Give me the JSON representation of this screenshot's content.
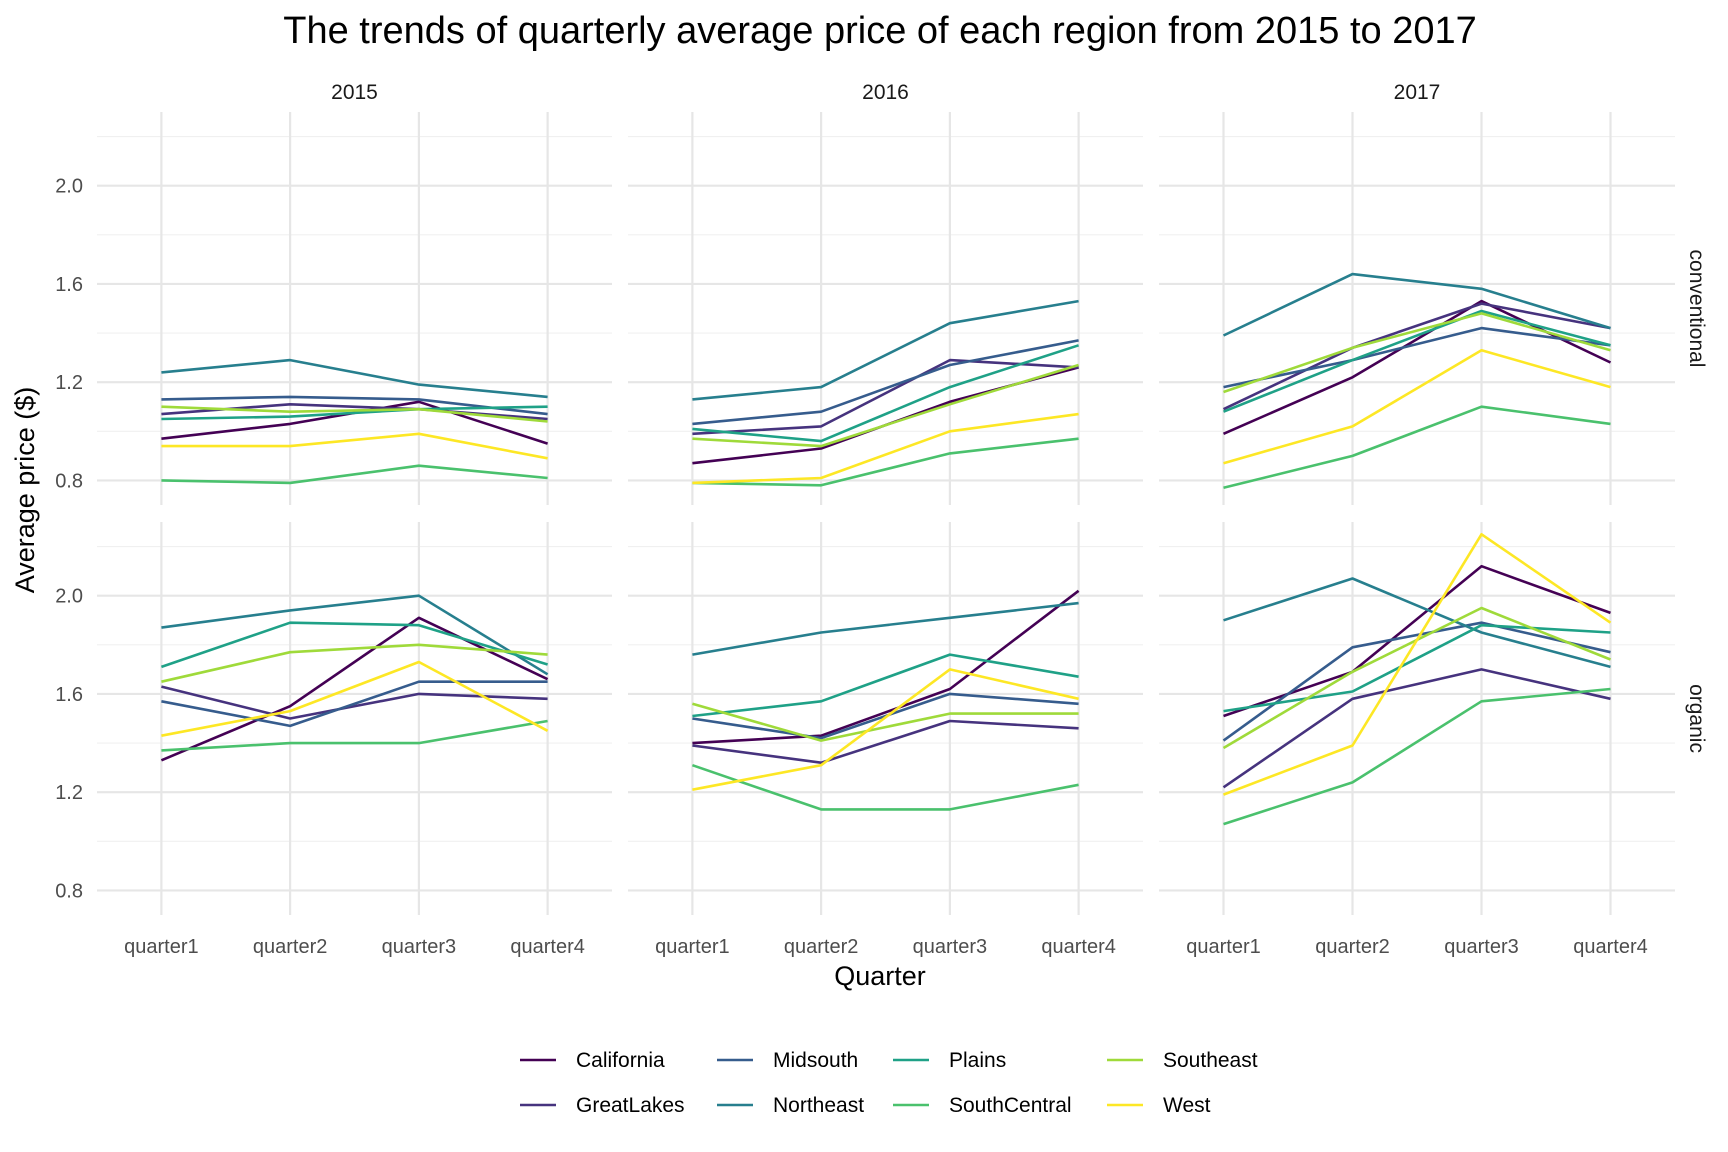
{
  "chart_data": {
    "type": "line",
    "title": "The trends of quarterly average price of each region from 2015 to 2017",
    "xlabel": "Quarter",
    "ylabel": "Average price ($)",
    "ylim": [
      0.7,
      2.3
    ],
    "yticks": [
      "0.8",
      "1.2",
      "1.6",
      "2.0"
    ],
    "categories": [
      "quarter1",
      "quarter2",
      "quarter3",
      "quarter4"
    ],
    "columns": [
      "2015",
      "2016",
      "2017"
    ],
    "rows": [
      "conventional",
      "organic"
    ],
    "series_meta": [
      {
        "name": "California",
        "color": "#440154"
      },
      {
        "name": "GreatLakes",
        "color": "#46337E"
      },
      {
        "name": "Midsouth",
        "color": "#365C8D"
      },
      {
        "name": "Northeast",
        "color": "#277F8E"
      },
      {
        "name": "Plains",
        "color": "#1FA187"
      },
      {
        "name": "SouthCentral",
        "color": "#4AC16D"
      },
      {
        "name": "Southeast",
        "color": "#9FDA3A"
      },
      {
        "name": "West",
        "color": "#FDE725"
      }
    ],
    "legend_position": "bottom",
    "grid": true,
    "panels": [
      {
        "year": "2015",
        "type": "conventional",
        "series": [
          {
            "name": "California",
            "values": [
              0.97,
              1.03,
              1.12,
              0.95
            ]
          },
          {
            "name": "GreatLakes",
            "values": [
              1.07,
              1.11,
              1.09,
              1.05
            ]
          },
          {
            "name": "Midsouth",
            "values": [
              1.13,
              1.14,
              1.13,
              1.07
            ]
          },
          {
            "name": "Northeast",
            "values": [
              1.24,
              1.29,
              1.19,
              1.14
            ]
          },
          {
            "name": "Plains",
            "values": [
              1.05,
              1.06,
              1.09,
              1.1
            ]
          },
          {
            "name": "SouthCentral",
            "values": [
              0.8,
              0.79,
              0.86,
              0.81
            ]
          },
          {
            "name": "Southeast",
            "values": [
              1.1,
              1.08,
              1.09,
              1.04
            ]
          },
          {
            "name": "West",
            "values": [
              0.94,
              0.94,
              0.99,
              0.89
            ]
          }
        ]
      },
      {
        "year": "2016",
        "type": "conventional",
        "series": [
          {
            "name": "California",
            "values": [
              0.87,
              0.93,
              1.12,
              1.26
            ]
          },
          {
            "name": "GreatLakes",
            "values": [
              0.99,
              1.02,
              1.29,
              1.26
            ]
          },
          {
            "name": "Midsouth",
            "values": [
              1.03,
              1.08,
              1.27,
              1.37
            ]
          },
          {
            "name": "Northeast",
            "values": [
              1.13,
              1.18,
              1.44,
              1.53
            ]
          },
          {
            "name": "Plains",
            "values": [
              1.01,
              0.96,
              1.18,
              1.35
            ]
          },
          {
            "name": "SouthCentral",
            "values": [
              0.79,
              0.78,
              0.91,
              0.97
            ]
          },
          {
            "name": "Southeast",
            "values": [
              0.97,
              0.94,
              1.11,
              1.27
            ]
          },
          {
            "name": "West",
            "values": [
              0.79,
              0.81,
              1.0,
              1.07
            ]
          }
        ]
      },
      {
        "year": "2017",
        "type": "conventional",
        "series": [
          {
            "name": "California",
            "values": [
              0.99,
              1.22,
              1.53,
              1.28
            ]
          },
          {
            "name": "GreatLakes",
            "values": [
              1.09,
              1.34,
              1.52,
              1.42
            ]
          },
          {
            "name": "Midsouth",
            "values": [
              1.18,
              1.29,
              1.42,
              1.35
            ]
          },
          {
            "name": "Northeast",
            "values": [
              1.39,
              1.64,
              1.58,
              1.42
            ]
          },
          {
            "name": "Plains",
            "values": [
              1.08,
              1.29,
              1.49,
              1.35
            ]
          },
          {
            "name": "SouthCentral",
            "values": [
              0.77,
              0.9,
              1.1,
              1.03
            ]
          },
          {
            "name": "Southeast",
            "values": [
              1.16,
              1.34,
              1.48,
              1.33
            ]
          },
          {
            "name": "West",
            "values": [
              0.87,
              1.02,
              1.33,
              1.18
            ]
          }
        ]
      },
      {
        "year": "2015",
        "type": "organic",
        "series": [
          {
            "name": "California",
            "values": [
              1.33,
              1.55,
              1.91,
              1.66
            ]
          },
          {
            "name": "GreatLakes",
            "values": [
              1.63,
              1.5,
              1.6,
              1.58
            ]
          },
          {
            "name": "Midsouth",
            "values": [
              1.57,
              1.47,
              1.65,
              1.65
            ]
          },
          {
            "name": "Northeast",
            "values": [
              1.87,
              1.94,
              2.0,
              1.68
            ]
          },
          {
            "name": "Plains",
            "values": [
              1.71,
              1.89,
              1.88,
              1.72
            ]
          },
          {
            "name": "SouthCentral",
            "values": [
              1.37,
              1.4,
              1.4,
              1.49
            ]
          },
          {
            "name": "Southeast",
            "values": [
              1.65,
              1.77,
              1.8,
              1.76
            ]
          },
          {
            "name": "West",
            "values": [
              1.43,
              1.53,
              1.73,
              1.45
            ]
          }
        ]
      },
      {
        "year": "2016",
        "type": "organic",
        "series": [
          {
            "name": "California",
            "values": [
              1.4,
              1.43,
              1.62,
              2.02
            ]
          },
          {
            "name": "GreatLakes",
            "values": [
              1.39,
              1.32,
              1.49,
              1.46
            ]
          },
          {
            "name": "Midsouth",
            "values": [
              1.5,
              1.42,
              1.6,
              1.56
            ]
          },
          {
            "name": "Northeast",
            "values": [
              1.76,
              1.85,
              1.91,
              1.97
            ]
          },
          {
            "name": "Plains",
            "values": [
              1.51,
              1.57,
              1.76,
              1.67
            ]
          },
          {
            "name": "SouthCentral",
            "values": [
              1.31,
              1.13,
              1.13,
              1.23
            ]
          },
          {
            "name": "Southeast",
            "values": [
              1.56,
              1.41,
              1.52,
              1.52
            ]
          },
          {
            "name": "West",
            "values": [
              1.21,
              1.31,
              1.7,
              1.58
            ]
          }
        ]
      },
      {
        "year": "2017",
        "type": "organic",
        "series": [
          {
            "name": "California",
            "values": [
              1.51,
              1.69,
              2.12,
              1.93
            ]
          },
          {
            "name": "GreatLakes",
            "values": [
              1.22,
              1.58,
              1.7,
              1.58
            ]
          },
          {
            "name": "Midsouth",
            "values": [
              1.41,
              1.79,
              1.89,
              1.77
            ]
          },
          {
            "name": "Northeast",
            "values": [
              1.9,
              2.07,
              1.85,
              1.71
            ]
          },
          {
            "name": "Plains",
            "values": [
              1.53,
              1.61,
              1.88,
              1.85
            ]
          },
          {
            "name": "SouthCentral",
            "values": [
              1.07,
              1.24,
              1.57,
              1.62
            ]
          },
          {
            "name": "Southeast",
            "values": [
              1.38,
              1.69,
              1.95,
              1.74
            ]
          },
          {
            "name": "West",
            "values": [
              1.19,
              1.39,
              2.25,
              1.89
            ]
          }
        ]
      }
    ]
  }
}
